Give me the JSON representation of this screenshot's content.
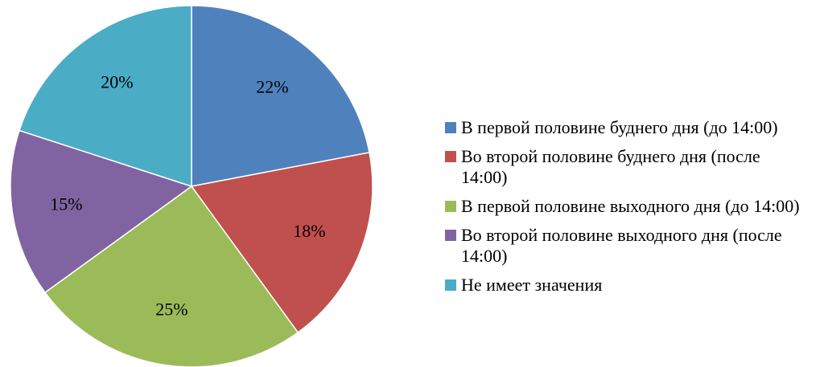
{
  "chart_data": {
    "type": "pie",
    "categories": [
      "В первой половине буднего дня (до 14:00)",
      "Во второй половине буднего дня (после 14:00)",
      "В первой половине выходного дня (до 14:00)",
      "Во второй половине выходного дня (после 14:00)",
      "Не имеет значения"
    ],
    "values": [
      22,
      18,
      25,
      15,
      20
    ],
    "value_labels": [
      "22%",
      "18%",
      "25%",
      "15%",
      "20%"
    ],
    "colors": [
      "#4f81bd",
      "#c0504d",
      "#9bbb59",
      "#8064a2",
      "#4bacc6"
    ],
    "legend": "right"
  }
}
